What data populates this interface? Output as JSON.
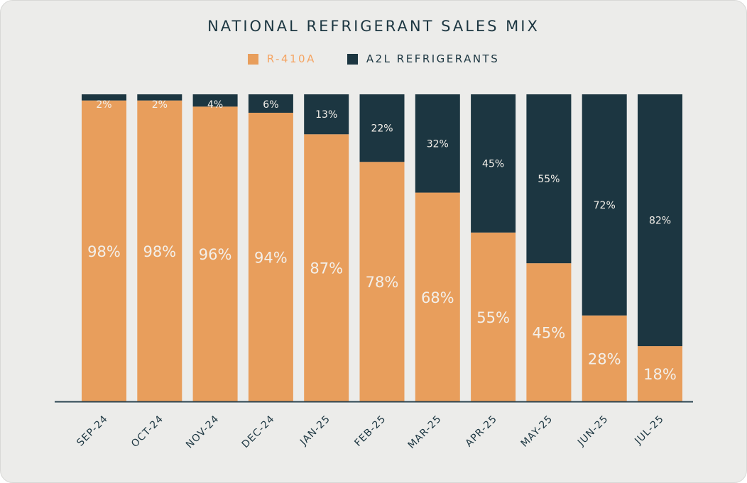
{
  "chart_data": {
    "type": "bar",
    "stacked": true,
    "title": "NATIONAL REFRIGERANT SALES MIX",
    "categories": [
      "SEP-24",
      "OCT-24",
      "NOV-24",
      "DEC-24",
      "JAN-25",
      "FEB-25",
      "MAR-25",
      "APR-25",
      "MAY-25",
      "JUN-25",
      "JUL-25"
    ],
    "series": [
      {
        "name": "R-410A",
        "color": "#e89e5c",
        "legend_text_color": "#f5a462",
        "values": [
          98,
          98,
          96,
          94,
          87,
          78,
          68,
          55,
          45,
          28,
          18
        ]
      },
      {
        "name": "A2L REFRIGERANTS",
        "color": "#1c3641",
        "legend_text_color": "#1c3641",
        "values": [
          2,
          2,
          4,
          6,
          13,
          22,
          32,
          45,
          55,
          72,
          82
        ]
      }
    ],
    "ylim": [
      0,
      100
    ],
    "value_suffix": "%",
    "legend_position": "top-center",
    "grid": false
  }
}
